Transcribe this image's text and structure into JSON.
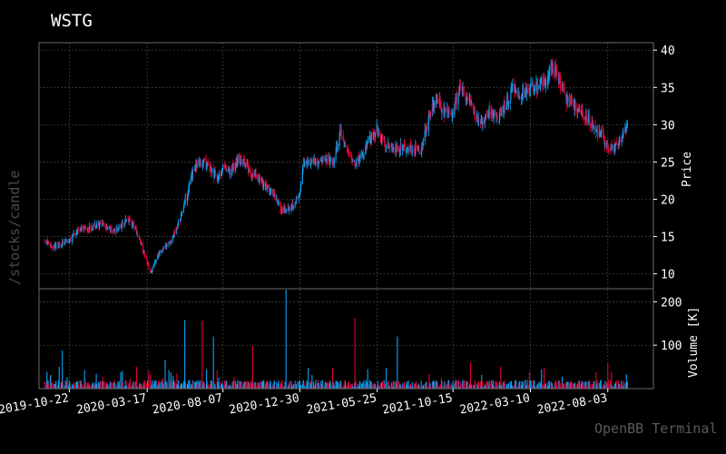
{
  "header": {
    "title": "WSTG"
  },
  "sidebar": {
    "route": "/stocks/candle"
  },
  "footer": {
    "watermark": "OpenBB Terminal"
  },
  "colors": {
    "up": "#0aa3f5",
    "down": "#e4003a",
    "grid": "#4b4b4b",
    "frame": "#6a6a6a",
    "text": "#ffffff"
  },
  "chart_data": [
    {
      "type": "candlestick",
      "ylabel": "Price",
      "ylim": [
        8,
        41
      ],
      "yticks": [
        10,
        15,
        20,
        25,
        30,
        35,
        40
      ],
      "xlim": [
        "2019-08-26",
        "2022-10-28"
      ],
      "xticks": [
        "2019-10-22",
        "2020-03-17",
        "2020-08-07",
        "2020-12-30",
        "2021-05-25",
        "2021-10-15",
        "2022-03-10",
        "2022-08-03"
      ],
      "grid": true,
      "series": [
        {
          "points": [
            [
              "2019-09-06",
              14.5
            ],
            [
              "2019-09-20",
              13.6
            ],
            [
              "2019-10-04",
              14.0
            ],
            [
              "2019-10-22",
              14.4
            ],
            [
              "2019-11-08",
              15.9
            ],
            [
              "2019-11-22",
              16.1
            ],
            [
              "2019-12-10",
              16.4
            ],
            [
              "2019-12-27",
              16.6
            ],
            [
              "2020-01-13",
              15.7
            ],
            [
              "2020-01-27",
              16.3
            ],
            [
              "2020-02-10",
              17.5
            ],
            [
              "2020-02-24",
              16.0
            ],
            [
              "2020-03-05",
              14.2
            ],
            [
              "2020-03-17",
              11.5
            ],
            [
              "2020-03-24",
              10.2
            ],
            [
              "2020-04-06",
              12.6
            ],
            [
              "2020-04-20",
              13.5
            ],
            [
              "2020-05-04",
              14.8
            ],
            [
              "2020-05-18",
              17.3
            ],
            [
              "2020-06-01",
              21.0
            ],
            [
              "2020-06-15",
              24.5
            ],
            [
              "2020-06-29",
              25.0
            ],
            [
              "2020-07-13",
              24.2
            ],
            [
              "2020-07-27",
              22.8
            ],
            [
              "2020-08-07",
              24.3
            ],
            [
              "2020-08-21",
              23.6
            ],
            [
              "2020-09-04",
              25.4
            ],
            [
              "2020-09-18",
              24.7
            ],
            [
              "2020-10-02",
              23.2
            ],
            [
              "2020-10-16",
              22.6
            ],
            [
              "2020-10-30",
              21.6
            ],
            [
              "2020-11-13",
              20.2
            ],
            [
              "2020-11-27",
              18.4
            ],
            [
              "2020-12-11",
              19.0
            ],
            [
              "2020-12-30",
              20.4
            ],
            [
              "2021-01-06",
              25.0
            ],
            [
              "2021-01-20",
              25.2
            ],
            [
              "2021-02-03",
              25.0
            ],
            [
              "2021-02-17",
              25.3
            ],
            [
              "2021-03-03",
              24.8
            ],
            [
              "2021-03-17",
              29.0
            ],
            [
              "2021-03-31",
              26.2
            ],
            [
              "2021-04-14",
              24.8
            ],
            [
              "2021-04-28",
              25.8
            ],
            [
              "2021-05-12",
              28.2
            ],
            [
              "2021-05-25",
              29.3
            ],
            [
              "2021-06-08",
              27.6
            ],
            [
              "2021-06-22",
              27.0
            ],
            [
              "2021-07-06",
              26.8
            ],
            [
              "2021-07-20",
              27.0
            ],
            [
              "2021-08-03",
              26.6
            ],
            [
              "2021-08-17",
              26.8
            ],
            [
              "2021-08-31",
              31.2
            ],
            [
              "2021-09-14",
              34.0
            ],
            [
              "2021-09-28",
              31.5
            ],
            [
              "2021-10-15",
              31.8
            ],
            [
              "2021-10-29",
              35.0
            ],
            [
              "2021-11-12",
              33.2
            ],
            [
              "2021-11-26",
              31.3
            ],
            [
              "2021-12-10",
              29.8
            ],
            [
              "2021-12-24",
              31.8
            ],
            [
              "2022-01-07",
              30.8
            ],
            [
              "2022-01-21",
              32.4
            ],
            [
              "2022-02-04",
              34.6
            ],
            [
              "2022-02-18",
              33.8
            ],
            [
              "2022-03-10",
              34.6
            ],
            [
              "2022-03-24",
              35.2
            ],
            [
              "2022-04-07",
              35.8
            ],
            [
              "2022-04-21",
              37.8
            ],
            [
              "2022-05-02",
              36.6
            ],
            [
              "2022-05-13",
              33.6
            ],
            [
              "2022-05-27",
              33.0
            ],
            [
              "2022-06-10",
              31.8
            ],
            [
              "2022-06-24",
              30.8
            ],
            [
              "2022-07-08",
              29.8
            ],
            [
              "2022-07-22",
              28.6
            ],
            [
              "2022-08-03",
              27.0
            ],
            [
              "2022-08-12",
              26.8
            ],
            [
              "2022-08-26",
              28.0
            ],
            [
              "2022-09-09",
              29.8
            ]
          ]
        }
      ]
    },
    {
      "type": "bar",
      "ylabel": "Volume [K]",
      "ylim": [
        0,
        230
      ],
      "yticks": [
        100,
        200
      ],
      "grid": true,
      "spikes": [
        [
          "2019-10-09",
          88
        ],
        [
          "2020-02-26",
          50
        ],
        [
          "2020-03-20",
          42
        ],
        [
          "2020-04-20",
          66
        ],
        [
          "2020-05-27",
          158
        ],
        [
          "2020-06-29",
          156
        ],
        [
          "2020-07-20",
          120
        ],
        [
          "2020-10-02",
          98
        ],
        [
          "2020-12-04",
          228
        ],
        [
          "2021-01-15",
          48
        ],
        [
          "2021-04-13",
          162
        ],
        [
          "2021-05-07",
          45
        ],
        [
          "2021-07-02",
          120
        ],
        [
          "2021-11-17",
          60
        ],
        [
          "2022-03-08",
          38
        ],
        [
          "2022-08-03",
          60
        ]
      ]
    }
  ]
}
